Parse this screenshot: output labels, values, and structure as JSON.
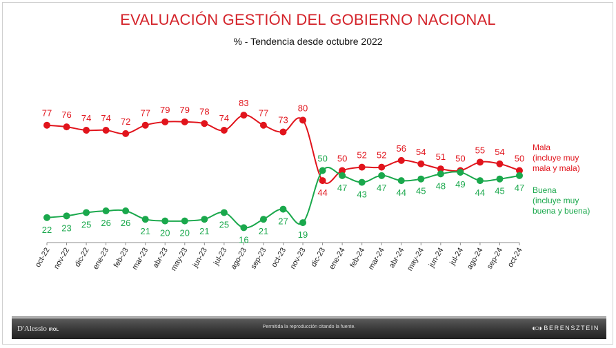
{
  "chart_data": {
    "type": "line",
    "title": "EVALUACIÓN GESTIÓN DEL GOBIERNO NACIONAL",
    "subtitle": "% - Tendencia desde octubre 2022",
    "categories": [
      "oct-22",
      "nov-22",
      "dic-22",
      "ene-23",
      "feb-23",
      "mar-23",
      "abr-23",
      "may-23",
      "jun-23",
      "jul-23",
      "ago-23",
      "sep-23",
      "oct-23",
      "nov-23",
      "dic-23",
      "ene-24",
      "feb-24",
      "mar-24",
      "abr-24",
      "may-24",
      "jun-24",
      "jul-24",
      "ago-24",
      "sep-24",
      "oct-24"
    ],
    "series": [
      {
        "name": "Mala",
        "legend": [
          "Mala",
          "(incluye muy",
          "mala y mala)"
        ],
        "color": "#e1141c",
        "values": [
          77,
          76,
          74,
          74,
          72,
          77,
          79,
          79,
          78,
          74,
          83,
          77,
          73,
          80,
          44,
          50,
          52,
          52,
          56,
          54,
          51,
          50,
          55,
          54,
          50
        ]
      },
      {
        "name": "Buena",
        "legend": [
          "Buena",
          "(incluye muy",
          "buena y buena)"
        ],
        "color": "#1aa84c",
        "values": [
          22,
          23,
          25,
          26,
          26,
          21,
          20,
          20,
          21,
          25,
          16,
          21,
          27,
          19,
          50,
          47,
          43,
          47,
          44,
          45,
          48,
          49,
          44,
          45,
          47
        ]
      }
    ],
    "ylim": [
      10,
      90
    ],
    "xlabel": "",
    "ylabel": ""
  },
  "footer": {
    "brand_left": "D'Alessio",
    "brand_left_suffix": "IROL",
    "note": "Permitida la reproducción citando la fuente.",
    "brand_right": "BERENSZTEIN"
  }
}
